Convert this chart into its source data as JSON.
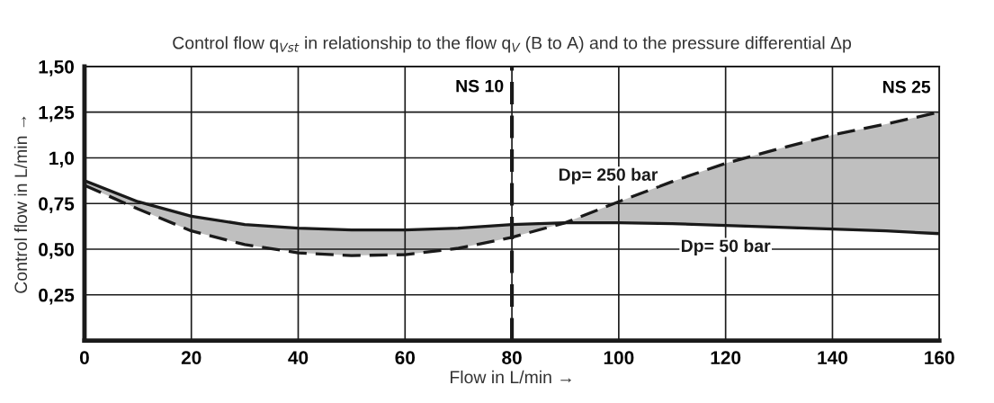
{
  "chart_data": {
    "type": "line",
    "title": "Control flow q$_{Vst}$ in relationship to the flow q$_{V}$ (B to A) and to the pressure differential Δp",
    "xlabel": "Flow in L/min →",
    "ylabel": "Control flow in L/min →",
    "x": [
      0,
      10,
      20,
      30,
      40,
      50,
      60,
      70,
      80,
      90,
      100,
      110,
      120,
      130,
      140,
      150,
      160
    ],
    "series": [
      {
        "name": "Dp= 50 bar",
        "color": "#1a1a1a",
        "line_style": "solid",
        "values": [
          0.875,
          0.76,
          0.68,
          0.635,
          0.615,
          0.605,
          0.605,
          0.615,
          0.635,
          0.645,
          0.645,
          0.64,
          0.63,
          0.62,
          0.61,
          0.6,
          0.585
        ]
      },
      {
        "name": "Dp= 250 bar",
        "color": "#1a1a1a",
        "line_style": "dashed",
        "values": [
          0.85,
          0.72,
          0.6,
          0.525,
          0.48,
          0.465,
          0.47,
          0.505,
          0.565,
          0.645,
          0.76,
          0.87,
          0.97,
          1.05,
          1.125,
          1.185,
          1.25
        ],
        "lower": [
          0.875,
          0.76,
          0.68,
          0.635,
          0.615,
          0.605,
          0.605,
          0.615,
          0.635,
          0.645,
          0.645,
          0.64,
          0.63,
          0.62,
          0.61,
          0.6,
          0.585
        ],
        "upper": [
          0.85,
          0.72,
          0.6,
          0.525,
          0.48,
          0.465,
          0.47,
          0.505,
          0.565,
          0.645,
          0.76,
          0.87,
          0.97,
          1.05,
          1.125,
          1.185,
          1.25
        ]
      }
    ],
    "annotations": [
      "NS 25"
    ],
    "ref_lines": [
      {
        "axis": "x",
        "value": 80,
        "label": "NS 10",
        "line_style": "dashed",
        "color": "#1a1a1a"
      }
    ],
    "xlim": [
      0,
      160
    ],
    "xticks": [
      0,
      20,
      40,
      60,
      80,
      100,
      120,
      140,
      160
    ],
    "ylim": [
      0,
      1.5
    ],
    "yticks": [
      {
        "value": 0.25,
        "label": "0,25"
      },
      {
        "value": 0.5,
        "label": "0,50"
      },
      {
        "value": 0.75,
        "label": "0,75"
      },
      {
        "value": 1.0,
        "label": "1,0"
      },
      {
        "value": 1.25,
        "label": "1,25"
      },
      {
        "value": 1.5,
        "label": "1,50"
      }
    ],
    "grid": true,
    "legend": false
  }
}
